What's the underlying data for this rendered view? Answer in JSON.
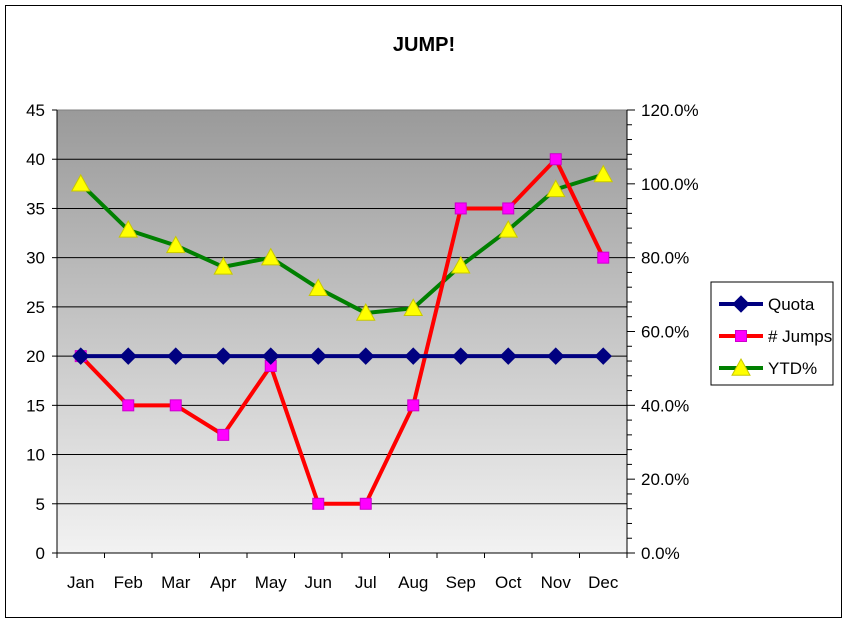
{
  "chart_data": {
    "type": "line",
    "title": "JUMP!",
    "categories": [
      "Jan",
      "Feb",
      "Mar",
      "Apr",
      "May",
      "Jun",
      "Jul",
      "Aug",
      "Sep",
      "Oct",
      "Nov",
      "Dec"
    ],
    "y_left": {
      "min": 0,
      "max": 45,
      "step": 5,
      "tick_labels": [
        "0",
        "5",
        "10",
        "15",
        "20",
        "25",
        "30",
        "35",
        "40",
        "45"
      ]
    },
    "y_right": {
      "min": 0,
      "max": 1.2,
      "step": 0.2,
      "tick_labels": [
        "0.0%",
        "20.0%",
        "40.0%",
        "60.0%",
        "80.0%",
        "100.0%",
        "120.0%"
      ]
    },
    "grid": true,
    "legend_position": "right",
    "series": [
      {
        "name": "Quota",
        "axis": "left",
        "color": "#000080",
        "marker": "diamond",
        "marker_color": "#000080",
        "values": [
          20,
          20,
          20,
          20,
          20,
          20,
          20,
          20,
          20,
          20,
          20,
          20
        ]
      },
      {
        "name": "# Jumps",
        "axis": "left",
        "color": "#ff0000",
        "marker": "square",
        "marker_color": "#ff00ff",
        "values": [
          20,
          15,
          15,
          12,
          19,
          5,
          5,
          15,
          35,
          35,
          40,
          30
        ]
      },
      {
        "name": "YTD%",
        "axis": "right",
        "color": "#008000",
        "marker": "triangle",
        "marker_color": "#ffff00",
        "values": [
          1.0,
          0.875,
          0.833,
          0.775,
          0.8,
          0.717,
          0.65,
          0.663,
          0.778,
          0.875,
          0.985,
          1.025
        ]
      }
    ]
  }
}
